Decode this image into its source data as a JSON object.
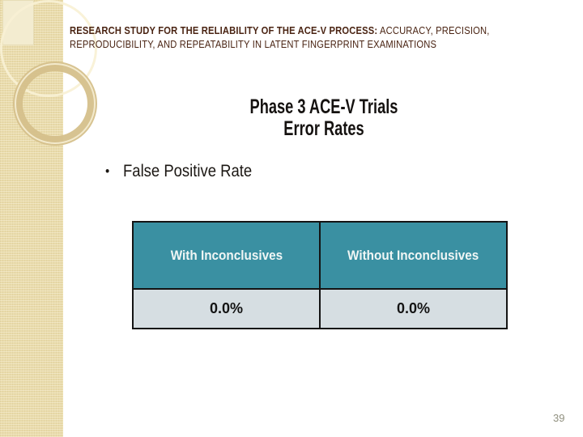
{
  "slide": {
    "header": {
      "line_bold": "RESEARCH STUDY FOR THE RELIABILITY OF THE ACE-V PROCESS:",
      "line_rest": "ACCURACY, PRECISION, REPRODUCIBILITY, AND REPEATABILITY IN LATENT FINGERPRINT EXAMINATIONS"
    },
    "title": {
      "line1": "Phase 3 ACE-V Trials",
      "line2": "Error Rates"
    },
    "bullets": [
      {
        "label": "False Positive Rate"
      }
    ],
    "page_number": "39"
  },
  "table": {
    "type": "table",
    "headers": [
      "With Inconclusives",
      "Without Inconclusives"
    ],
    "rows": [
      [
        "0.0%",
        "0.0%"
      ]
    ]
  },
  "colors": {
    "header_text": "#4a2413",
    "body_text": "#171310",
    "table_header_bg": "#3a90a2",
    "table_header_text": "#f0f6f5",
    "table_row_bg": "#d6dee2",
    "table_border": "#141414",
    "band": "#e9dbaa",
    "band_square": "#f3ecd0",
    "ring": "#d5c08b",
    "page_number": "#90907f"
  }
}
